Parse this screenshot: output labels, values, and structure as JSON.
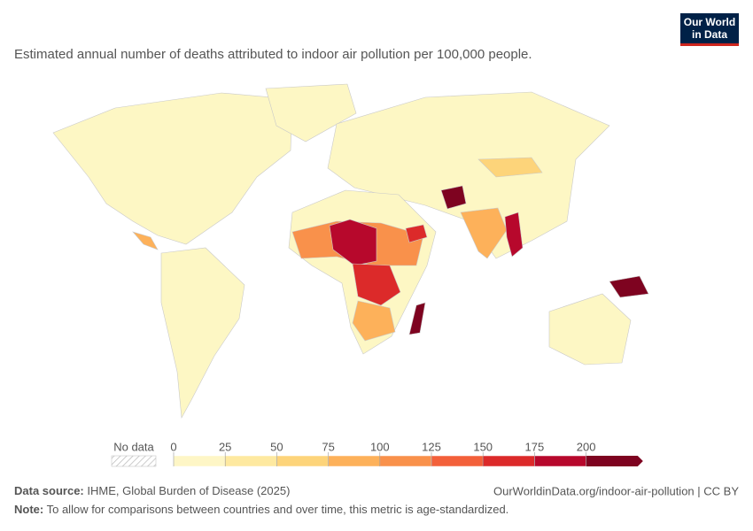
{
  "header": {
    "title": "Estimated annual number of deaths attributed to indoor air pollution per 100,000 people.",
    "logo": [
      "Our World",
      "in Data"
    ]
  },
  "legend": {
    "no_data": "No data",
    "ticks": [
      0,
      25,
      50,
      75,
      100,
      125,
      150,
      175,
      200
    ],
    "colors": [
      "#fef6c6",
      "#fee9a0",
      "#fdd47a",
      "#fdb15a",
      "#f9914b",
      "#f3603a",
      "#dc2a2a",
      "#b7082c",
      "#7e0320"
    ]
  },
  "footer": {
    "source_label": "Data source:",
    "source": "IHME, Global Burden of Disease (2025)",
    "url": "OurWorldinData.org/indoor-air-pollution | CC BY",
    "note_label": "Note:",
    "note": "To allow for comparisons between countries and over time, this metric is age-standardized."
  }
}
